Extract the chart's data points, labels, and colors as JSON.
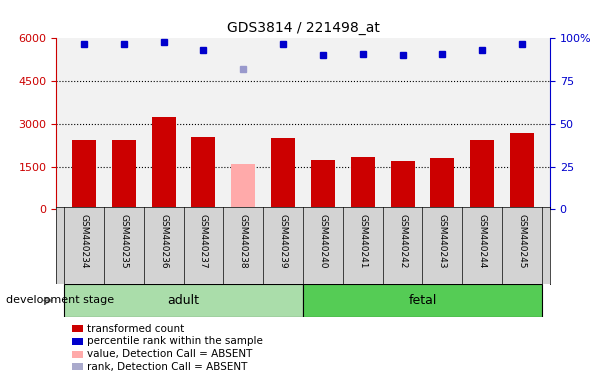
{
  "title": "GDS3814 / 221498_at",
  "samples": [
    "GSM440234",
    "GSM440235",
    "GSM440236",
    "GSM440237",
    "GSM440238",
    "GSM440239",
    "GSM440240",
    "GSM440241",
    "GSM440242",
    "GSM440243",
    "GSM440244",
    "GSM440245"
  ],
  "bar_values": [
    2450,
    2430,
    3250,
    2550,
    1600,
    2520,
    1720,
    1850,
    1700,
    1800,
    2430,
    2680
  ],
  "bar_colors": [
    "#cc0000",
    "#cc0000",
    "#cc0000",
    "#cc0000",
    "#ffaaaa",
    "#cc0000",
    "#cc0000",
    "#cc0000",
    "#cc0000",
    "#cc0000",
    "#cc0000",
    "#cc0000"
  ],
  "percentile_values": [
    97,
    97,
    98,
    93,
    82,
    97,
    90,
    91,
    90,
    91,
    93,
    97
  ],
  "percentile_colors": [
    "#0000cc",
    "#0000cc",
    "#0000cc",
    "#0000cc",
    "#9999cc",
    "#0000cc",
    "#0000cc",
    "#0000cc",
    "#0000cc",
    "#0000cc",
    "#0000cc",
    "#0000cc"
  ],
  "ylim_left": [
    0,
    6000
  ],
  "ylim_right": [
    0,
    100
  ],
  "yticks_left": [
    0,
    1500,
    3000,
    4500,
    6000
  ],
  "yticks_right": [
    0,
    25,
    50,
    75,
    100
  ],
  "groups": [
    {
      "label": "adult",
      "start": 0,
      "end": 5,
      "color": "#aaddaa"
    },
    {
      "label": "fetal",
      "start": 6,
      "end": 11,
      "color": "#55cc55"
    }
  ],
  "group_label_prefix": "development stage",
  "legend_items": [
    {
      "label": "transformed count",
      "color": "#cc0000"
    },
    {
      "label": "percentile rank within the sample",
      "color": "#0000cc"
    },
    {
      "label": "value, Detection Call = ABSENT",
      "color": "#ffaaaa"
    },
    {
      "label": "rank, Detection Call = ABSENT",
      "color": "#aaaacc"
    }
  ],
  "left_axis_color": "#cc0000",
  "right_axis_color": "#0000cc",
  "background_color": "#ffffff",
  "plot_bg_color": "#f2f2f2",
  "label_bg_color": "#d3d3d3"
}
